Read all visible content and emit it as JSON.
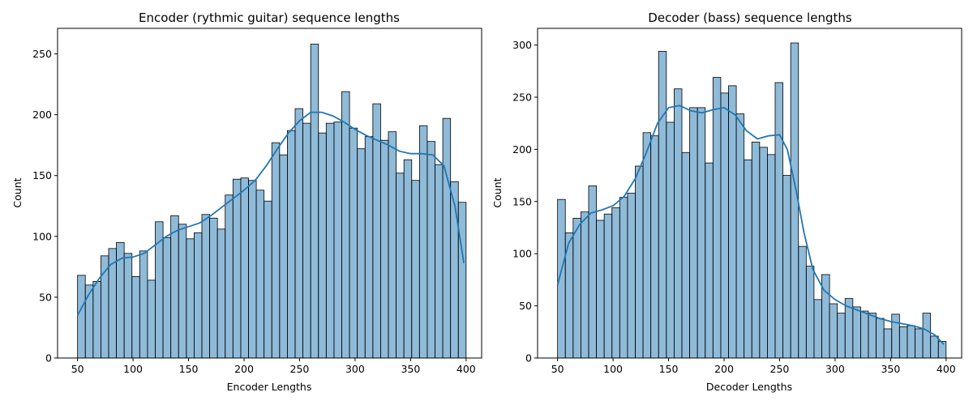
{
  "chart_data": [
    {
      "type": "bar",
      "title": "Encoder (rythmic guitar) sequence lengths",
      "xlabel": "Encoder Lengths",
      "ylabel": "Count",
      "xlim": [
        32,
        414
      ],
      "ylim": [
        0,
        271
      ],
      "xticks": [
        50,
        100,
        150,
        200,
        250,
        300,
        350,
        400
      ],
      "yticks": [
        0,
        50,
        100,
        150,
        200,
        250
      ],
      "bin_start": 50,
      "bin_width": 7,
      "bar_color": "#1f77b4",
      "values": [
        68,
        60,
        63,
        84,
        90,
        95,
        86,
        67,
        88,
        64,
        112,
        99,
        117,
        110,
        98,
        103,
        118,
        115,
        106,
        134,
        147,
        148,
        146,
        138,
        129,
        177,
        167,
        187,
        205,
        193,
        258,
        185,
        193,
        194,
        219,
        189,
        172,
        182,
        209,
        179,
        186,
        152,
        163,
        146,
        191,
        178,
        159,
        197,
        145,
        128
      ],
      "kde": [
        [
          50,
          35
        ],
        [
          60,
          52
        ],
        [
          70,
          66
        ],
        [
          80,
          77
        ],
        [
          90,
          82
        ],
        [
          100,
          83
        ],
        [
          110,
          86
        ],
        [
          120,
          93
        ],
        [
          130,
          100
        ],
        [
          140,
          105
        ],
        [
          150,
          108
        ],
        [
          160,
          111
        ],
        [
          170,
          117
        ],
        [
          180,
          124
        ],
        [
          190,
          131
        ],
        [
          200,
          138
        ],
        [
          210,
          146
        ],
        [
          220,
          158
        ],
        [
          230,
          172
        ],
        [
          240,
          185
        ],
        [
          250,
          195
        ],
        [
          260,
          202
        ],
        [
          270,
          202
        ],
        [
          280,
          199
        ],
        [
          290,
          194
        ],
        [
          300,
          188
        ],
        [
          310,
          183
        ],
        [
          320,
          179
        ],
        [
          330,
          175
        ],
        [
          340,
          170
        ],
        [
          350,
          168
        ],
        [
          360,
          168
        ],
        [
          370,
          167
        ],
        [
          380,
          158
        ],
        [
          390,
          125
        ],
        [
          398,
          78
        ]
      ]
    },
    {
      "type": "bar",
      "title": "Decoder (bass) sequence lengths",
      "xlabel": "Decoder Lengths",
      "ylabel": "Count",
      "xlim": [
        32,
        414
      ],
      "ylim": [
        0,
        316
      ],
      "xticks": [
        50,
        100,
        150,
        200,
        250,
        300,
        350,
        400
      ],
      "yticks": [
        0,
        50,
        100,
        150,
        200,
        250,
        300
      ],
      "bin_start": 50,
      "bin_width": 7,
      "bar_color": "#1f77b4",
      "values": [
        152,
        120,
        134,
        140,
        165,
        132,
        138,
        144,
        154,
        158,
        184,
        216,
        213,
        294,
        226,
        258,
        197,
        240,
        240,
        187,
        269,
        254,
        261,
        234,
        190,
        207,
        202,
        195,
        264,
        175,
        302,
        107,
        88,
        56,
        80,
        52,
        43,
        57,
        49,
        45,
        43,
        38,
        28,
        42,
        30,
        31,
        28,
        43,
        21,
        16
      ],
      "kde": [
        [
          50,
          70
        ],
        [
          60,
          110
        ],
        [
          70,
          128
        ],
        [
          80,
          139
        ],
        [
          90,
          142
        ],
        [
          100,
          146
        ],
        [
          110,
          155
        ],
        [
          120,
          172
        ],
        [
          130,
          197
        ],
        [
          140,
          225
        ],
        [
          150,
          240
        ],
        [
          160,
          242
        ],
        [
          170,
          237
        ],
        [
          180,
          235
        ],
        [
          190,
          238
        ],
        [
          200,
          240
        ],
        [
          210,
          233
        ],
        [
          220,
          218
        ],
        [
          230,
          210
        ],
        [
          240,
          213
        ],
        [
          250,
          214
        ],
        [
          257,
          200
        ],
        [
          265,
          160
        ],
        [
          272,
          120
        ],
        [
          280,
          85
        ],
        [
          290,
          65
        ],
        [
          300,
          56
        ],
        [
          310,
          50
        ],
        [
          320,
          46
        ],
        [
          330,
          42
        ],
        [
          340,
          38
        ],
        [
          350,
          35
        ],
        [
          360,
          33
        ],
        [
          370,
          31
        ],
        [
          380,
          28
        ],
        [
          390,
          22
        ],
        [
          398,
          13
        ]
      ]
    }
  ]
}
